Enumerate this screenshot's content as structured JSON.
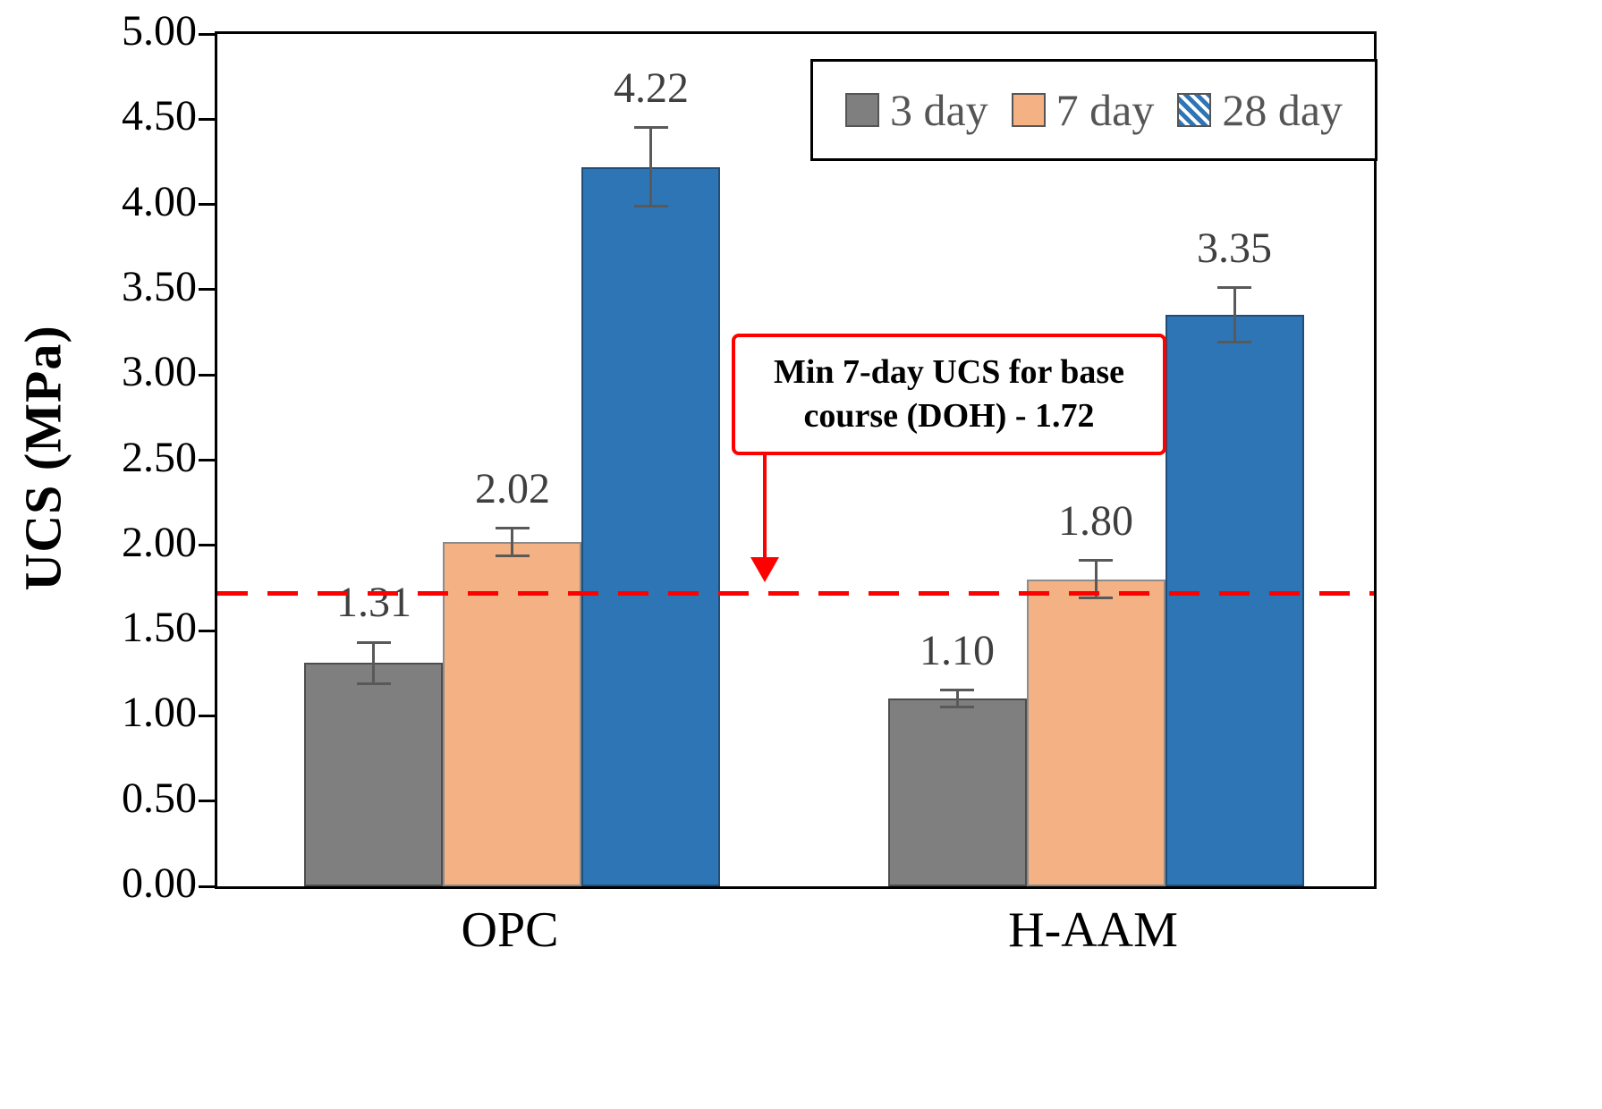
{
  "figure_title": "UCS bar chart",
  "chart_data": {
    "type": "bar",
    "title": "",
    "xlabel": "",
    "ylabel": "UCS (MPa)",
    "ylim": [
      0,
      5
    ],
    "ytick_step": 0.5,
    "grid": false,
    "legend_position": "top-right",
    "categories": [
      "OPC",
      "H-AAM"
    ],
    "group_center_fractions": [
      0.2552,
      0.7595
    ],
    "series": [
      {
        "name": "3 day",
        "values": [
          1.31,
          1.1
        ],
        "errors": [
          0.12,
          0.05
        ],
        "color": "#7F7F7F",
        "edge": "#4d4d4d",
        "hatch": false
      },
      {
        "name": "7 day",
        "values": [
          2.02,
          1.8
        ],
        "errors": [
          0.08,
          0.11
        ],
        "color": "#F4B183",
        "edge": "#8c8c8c",
        "hatch": false
      },
      {
        "name": "28 day",
        "values": [
          4.22,
          3.35
        ],
        "errors": [
          0.23,
          0.16
        ],
        "color": "#2E75B6",
        "edge": "#1f4e79",
        "hatch": true
      }
    ],
    "threshold_line": {
      "value": 1.72,
      "color": "#FF0000",
      "style": "dashed",
      "label_line1": "Min 7-day UCS for base",
      "label_line2": "course (DOH) - 1.72"
    }
  }
}
